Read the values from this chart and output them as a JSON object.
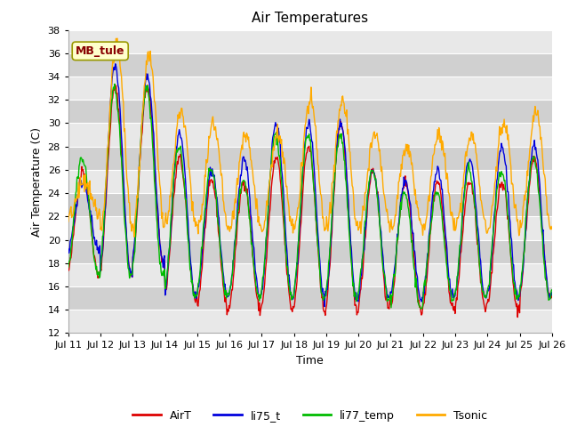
{
  "title": "Air Temperatures",
  "xlabel": "Time",
  "ylabel": "Air Temperature (C)",
  "ylim": [
    12,
    38
  ],
  "yticks": [
    12,
    14,
    16,
    18,
    20,
    22,
    24,
    26,
    28,
    30,
    32,
    34,
    36,
    38
  ],
  "xtick_labels": [
    "Jul 11",
    "Jul 12",
    "Jul 13",
    "Jul 14",
    "Jul 15",
    "Jul 16",
    "Jul 17",
    "Jul 18",
    "Jul 19",
    "Jul 20",
    "Jul 21",
    "Jul 22",
    "Jul 23",
    "Jul 24",
    "Jul 25",
    "Jul 26"
  ],
  "series": {
    "AirT": {
      "color": "#dd0000",
      "lw": 1.0
    },
    "li75_t": {
      "color": "#0000dd",
      "lw": 1.0
    },
    "li77_temp": {
      "color": "#00bb00",
      "lw": 1.0
    },
    "Tsonic": {
      "color": "#ffaa00",
      "lw": 1.0
    }
  },
  "annotation_text": "MB_tule",
  "annotation_color": "#880000",
  "annotation_box_color": "#ffffcc",
  "annotation_box_edge": "#999900",
  "fig_bg": "#ffffff",
  "ax_bg_light": "#e8e8e8",
  "ax_bg_dark": "#d0d0d0",
  "grid_color": "#ffffff",
  "title_fontsize": 11,
  "axis_fontsize": 9,
  "tick_fontsize": 8,
  "legend_fontsize": 9,
  "annot_fontsize": 9
}
